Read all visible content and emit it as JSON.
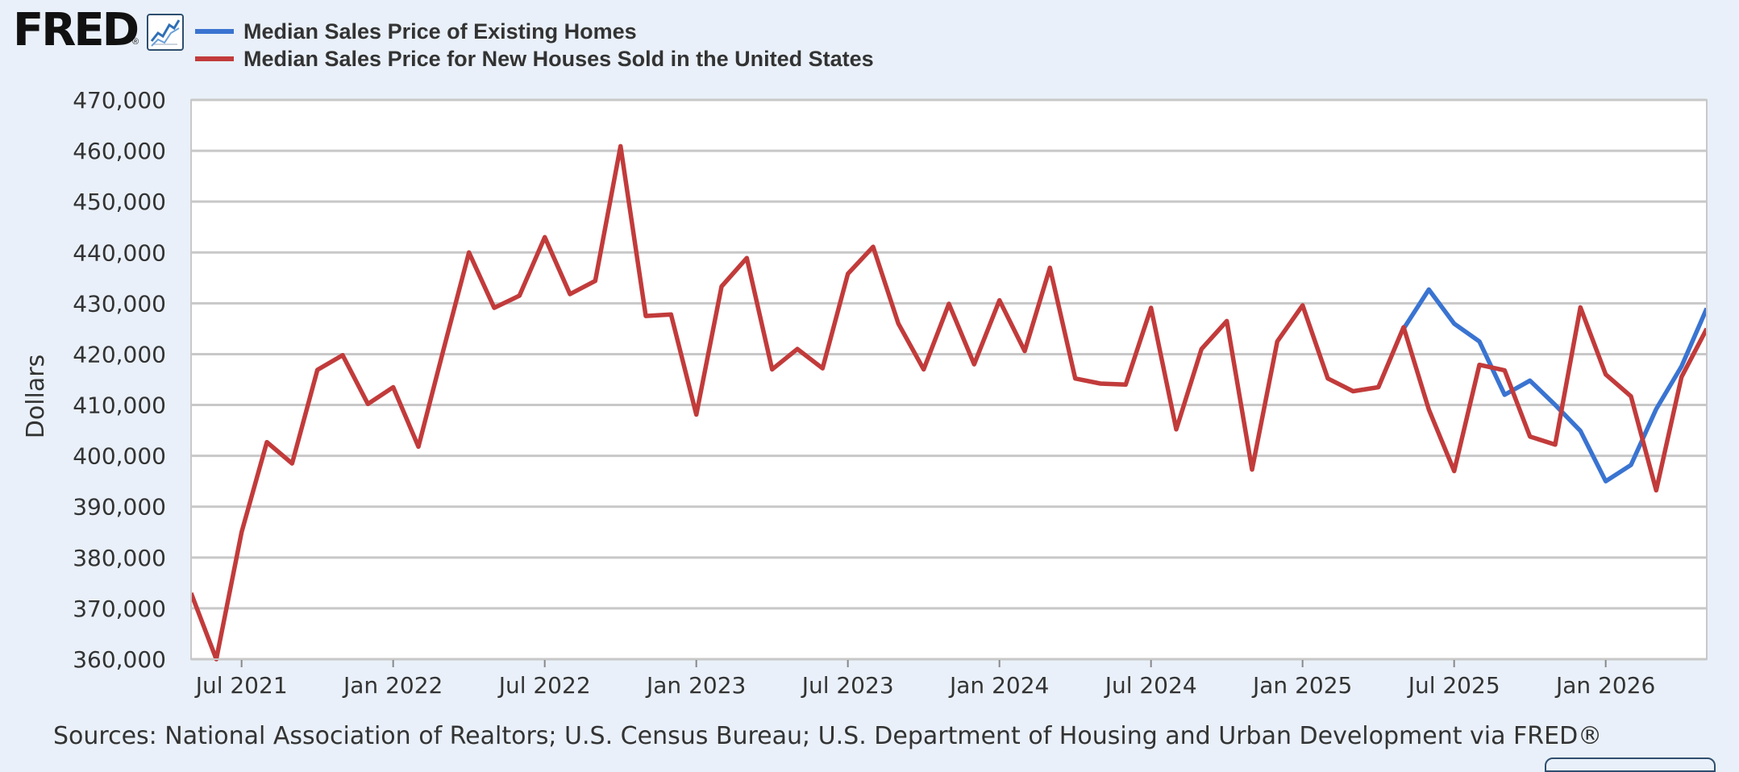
{
  "header": {
    "logo_text": "FRED",
    "logo_reg": "®",
    "logo_icon": "line-chart-icon"
  },
  "colors": {
    "background": "#e9f0f9",
    "plot_background": "#ffffff",
    "grid": "#c8c8c8",
    "existing_homes": "#3a74d1",
    "new_houses": "#c23b3b"
  },
  "chart_data": {
    "type": "line",
    "ylabel": "Dollars",
    "xlabel": "",
    "ylim": [
      360000,
      470000
    ],
    "yticks": [
      360000,
      370000,
      380000,
      390000,
      400000,
      410000,
      420000,
      430000,
      440000,
      450000,
      460000,
      470000
    ],
    "ytick_labels": [
      "360,000",
      "370,000",
      "380,000",
      "390,000",
      "400,000",
      "410,000",
      "420,000",
      "430,000",
      "440,000",
      "450,000",
      "460,000",
      "470,000"
    ],
    "xlim": [
      "2021-05",
      "2026-05"
    ],
    "xticks": [
      "2021-07",
      "2022-01",
      "2022-07",
      "2023-01",
      "2023-07",
      "2024-01",
      "2024-07",
      "2025-01",
      "2025-07",
      "2026-01"
    ],
    "xtick_labels": [
      "Jul 2021",
      "Jan 2022",
      "Jul 2022",
      "Jan 2023",
      "Jul 2023",
      "Jan 2024",
      "Jul 2024",
      "Jan 2025",
      "Jul 2025",
      "Jan 2026"
    ],
    "grid": true,
    "legend_position": "top-left",
    "series": [
      {
        "name": "Median Sales Price of Existing Homes",
        "color": "#3a74d1",
        "x": [
          "2025-05",
          "2025-06",
          "2025-07",
          "2025-08",
          "2025-09",
          "2025-10",
          "2025-11",
          "2025-12",
          "2026-01",
          "2026-02",
          "2026-03",
          "2026-04",
          "2026-05"
        ],
        "values": [
          425000,
          432700,
          426000,
          422500,
          412000,
          414800,
          410000,
          404900,
          395000,
          398200,
          409200,
          417600,
          429000
        ]
      },
      {
        "name": "Median Sales Price for New Houses Sold in the United States",
        "color": "#c23b3b",
        "x": [
          "2021-05",
          "2021-06",
          "2021-07",
          "2021-08",
          "2021-09",
          "2021-10",
          "2021-11",
          "2021-12",
          "2022-01",
          "2022-02",
          "2022-03",
          "2022-04",
          "2022-05",
          "2022-06",
          "2022-07",
          "2022-08",
          "2022-09",
          "2022-10",
          "2022-11",
          "2022-12",
          "2023-01",
          "2023-02",
          "2023-03",
          "2023-04",
          "2023-05",
          "2023-06",
          "2023-07",
          "2023-08",
          "2023-09",
          "2023-10",
          "2023-11",
          "2023-12",
          "2024-01",
          "2024-02",
          "2024-03",
          "2024-04",
          "2024-05",
          "2024-06",
          "2024-07",
          "2024-08",
          "2024-09",
          "2024-10",
          "2024-11",
          "2024-12",
          "2025-01",
          "2025-02",
          "2025-03",
          "2025-04",
          "2025-05",
          "2025-06",
          "2025-07",
          "2025-08",
          "2025-09",
          "2025-10",
          "2025-11",
          "2025-12",
          "2026-01",
          "2026-02",
          "2026-03",
          "2026-04",
          "2026-05"
        ],
        "values": [
          373000,
          360000,
          385000,
          402700,
          398500,
          416900,
          419800,
          410200,
          413500,
          401800,
          421000,
          440000,
          429100,
          431500,
          443000,
          431800,
          434400,
          460900,
          427500,
          427800,
          408100,
          433300,
          438900,
          417000,
          421000,
          417200,
          435800,
          441100,
          426000,
          417000,
          429900,
          418000,
          430600,
          420600,
          437000,
          415200,
          414200,
          414000,
          429100,
          405200,
          421000,
          426500,
          397300,
          422500,
          429600,
          415200,
          412700,
          413500,
          425300,
          409100,
          397000,
          417900,
          416800,
          403800,
          402200,
          429200,
          416000,
          411700,
          393200,
          415500,
          425000
        ]
      }
    ]
  },
  "source_text": "Sources: National Association of Realtors; U.S. Census Bureau; U.S. Department of Housing and Urban Development via FRED®"
}
